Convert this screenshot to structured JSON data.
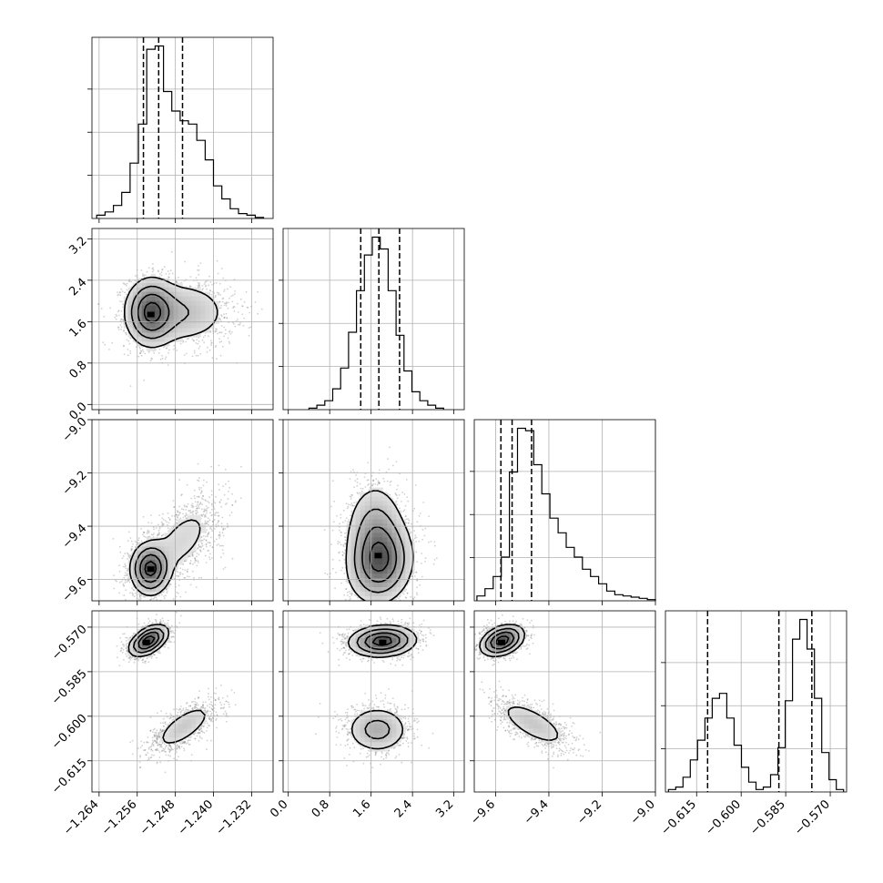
{
  "chart_data": {
    "type": "corner",
    "n_params": 4,
    "grid": true,
    "histogram_color": "#000000",
    "scatter_color": "#808080",
    "contour_color": "#000000",
    "params": [
      {
        "range": [
          -1.2655,
          -1.2275
        ],
        "ticks": [
          -1.264,
          -1.256,
          -1.248,
          -1.24,
          -1.232
        ],
        "tick_labels": [
          "−1.264",
          "−1.256",
          "−1.248",
          "−1.240",
          "−1.232"
        ],
        "quantiles": [
          -1.2547,
          -1.2515,
          -1.2465
        ],
        "hist_lo": -1.2645,
        "hist_hi": -1.2295,
        "hist": [
          1,
          2,
          4,
          8,
          17,
          29,
          52,
          53,
          39,
          33,
          30,
          29,
          24,
          18,
          10,
          6,
          3,
          1.5,
          1,
          0.3
        ]
      },
      {
        "range": [
          -0.1,
          3.4
        ],
        "ticks": [
          0.0,
          0.8,
          1.6,
          2.4,
          3.2
        ],
        "tick_labels": [
          "0.0",
          "0.8",
          "1.6",
          "2.4",
          "3.2"
        ],
        "quantiles": [
          1.4,
          1.75,
          2.15
        ],
        "hist_lo": 0.4,
        "hist_hi": 3.0,
        "hist": [
          0.5,
          1.5,
          3,
          7,
          14,
          26,
          40,
          52,
          58,
          54,
          40,
          25,
          13,
          6,
          3,
          1.5,
          0.5
        ]
      },
      {
        "range": [
          -9.68,
          -9.0
        ],
        "ticks": [
          -9.6,
          -9.4,
          -9.2,
          -9.0
        ],
        "tick_labels": [
          "−9.6",
          "−9.4",
          "−9.2",
          "−9.0"
        ],
        "quantiles": [
          -9.58,
          -9.538,
          -9.465
        ],
        "hist_lo": -9.67,
        "hist_hi": -9.0,
        "hist": [
          2,
          5,
          10,
          18,
          53,
          71,
          70,
          56,
          44,
          34,
          28,
          22,
          18,
          13,
          10,
          7,
          4,
          2.5,
          2,
          1.5,
          1,
          0.5
        ]
      },
      {
        "range": [
          -0.6255,
          -0.5645
        ],
        "ticks": [
          -0.615,
          -0.6,
          -0.585,
          -0.57
        ],
        "tick_labels": [
          "−0.615",
          "−0.600",
          "−0.585",
          "−0.570"
        ],
        "quantiles": [
          -0.6113,
          -0.5873,
          -0.5762
        ],
        "hist_lo": -0.6245,
        "hist_hi": -0.5655,
        "hist": [
          1,
          2,
          6,
          13,
          21,
          30,
          38,
          40,
          30,
          19,
          10,
          4,
          1,
          2,
          7,
          18,
          37,
          62,
          70,
          58,
          38,
          16,
          5,
          1
        ]
      }
    ],
    "pairs": [
      {
        "row": 1,
        "col": 0,
        "components": [
          {
            "mx": -1.2532,
            "my": 1.78,
            "sx": 0.0027,
            "sy": 0.34,
            "rho": 0.0,
            "w": 0.55
          },
          {
            "mx": -1.2465,
            "my": 1.78,
            "sx": 0.0055,
            "sy": 0.34,
            "rho": 0.0,
            "w": 0.45
          }
        ]
      },
      {
        "row": 2,
        "col": 0,
        "components": [
          {
            "mx": -1.2533,
            "my": -9.56,
            "sx": 0.0021,
            "sy": 0.05,
            "rho": 0.0,
            "w": 0.6
          },
          {
            "mx": -1.2465,
            "my": -9.45,
            "sx": 0.0045,
            "sy": 0.09,
            "rho": 0.55,
            "w": 0.4
          }
        ]
      },
      {
        "row": 2,
        "col": 1,
        "components": [
          {
            "mx": 1.78,
            "my": -9.54,
            "sx": 0.33,
            "sy": 0.08,
            "rho": 0.1,
            "w": 0.6
          },
          {
            "mx": 1.68,
            "my": -9.42,
            "sx": 0.3,
            "sy": 0.1,
            "rho": 0.0,
            "w": 0.4
          }
        ]
      },
      {
        "row": 3,
        "col": 0,
        "components": [
          {
            "mx": -1.2536,
            "my": -0.5745,
            "sx": 0.0021,
            "sy": 0.0027,
            "rho": 0.5,
            "w": 0.6
          },
          {
            "mx": -1.2462,
            "my": -0.6035,
            "sx": 0.0036,
            "sy": 0.0045,
            "rho": 0.7,
            "w": 0.4
          }
        ]
      },
      {
        "row": 3,
        "col": 1,
        "components": [
          {
            "mx": 1.82,
            "my": -0.5747,
            "sx": 0.33,
            "sy": 0.0027,
            "rho": 0.1,
            "w": 0.6
          },
          {
            "mx": 1.72,
            "my": -0.6045,
            "sx": 0.32,
            "sy": 0.0042,
            "rho": 0.0,
            "w": 0.4
          }
        ]
      },
      {
        "row": 3,
        "col": 2,
        "components": [
          {
            "mx": -9.575,
            "my": -0.5745,
            "sx": 0.042,
            "sy": 0.0027,
            "rho": 0.35,
            "w": 0.6
          },
          {
            "mx": -9.46,
            "my": -0.6025,
            "sx": 0.075,
            "sy": 0.0045,
            "rho": -0.7,
            "w": 0.4
          }
        ]
      }
    ]
  }
}
